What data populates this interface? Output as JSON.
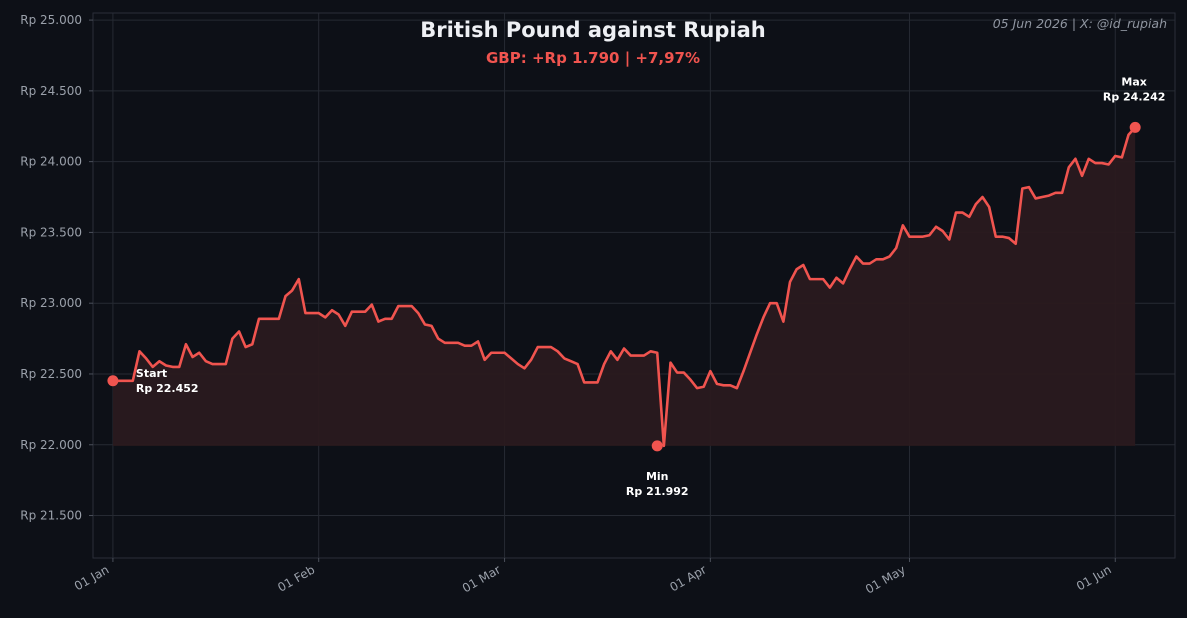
{
  "header": {
    "title": "British Pound against Rupiah",
    "subtitle": "GBP: +Rp 1.790 | +7,97%",
    "credit": "05 Jun 2026 | X: @id_rupiah"
  },
  "colors": {
    "background": "#0d1017",
    "plot_border": "#2a2e38",
    "grid": "#262a33",
    "line": "#f0544f",
    "fill": "#2a1a1f",
    "subtitle": "#f0544f",
    "tick_text": "#9aa0aa"
  },
  "annotations": {
    "start": {
      "label": "Start",
      "value": "Rp 22.452"
    },
    "min": {
      "label": "Min",
      "value": "Rp 21.992"
    },
    "max": {
      "label": "Max",
      "value": "Rp 24.242"
    }
  },
  "chart_data": {
    "type": "area",
    "title": "British Pound against Rupiah",
    "subtitle": "GBP: +Rp 1.790 | +7,97%",
    "xlabel": "",
    "ylabel": "",
    "grid": true,
    "legend": "none",
    "ylim": [
      21200,
      25050
    ],
    "xlim": [
      "2025-12-29",
      "2026-06-10"
    ],
    "y_ticks": [
      21500,
      22000,
      22500,
      23000,
      23500,
      24000,
      24500,
      25000
    ],
    "y_tick_labels": [
      "Rp 21.500",
      "Rp 22.000",
      "Rp 22.500",
      "Rp 23.000",
      "Rp 23.500",
      "Rp 24.000",
      "Rp 24.500",
      "Rp 25.000"
    ],
    "x_ticks": [
      "2026-01-01",
      "2026-02-01",
      "2026-03-01",
      "2026-04-01",
      "2026-05-01",
      "2026-06-01"
    ],
    "x_tick_labels": [
      "01 Jan",
      "01 Feb",
      "01 Mar",
      "01 Apr",
      "01 May",
      "01 Jun"
    ],
    "fill_baseline": 21992,
    "series": [
      {
        "x": [
          "2026-01-01",
          "2026-01-02",
          "2026-01-03",
          "2026-01-04",
          "2026-01-05",
          "2026-01-06",
          "2026-01-07",
          "2026-01-08",
          "2026-01-09",
          "2026-01-10",
          "2026-01-11",
          "2026-01-12",
          "2026-01-13",
          "2026-01-14",
          "2026-01-15",
          "2026-01-16",
          "2026-01-17",
          "2026-01-18",
          "2026-01-19",
          "2026-01-20",
          "2026-01-21",
          "2026-01-22",
          "2026-01-23",
          "2026-01-24",
          "2026-01-25",
          "2026-01-26",
          "2026-01-27",
          "2026-01-28",
          "2026-01-29",
          "2026-01-30",
          "2026-01-31",
          "2026-02-01",
          "2026-02-02",
          "2026-02-03",
          "2026-02-04",
          "2026-02-05",
          "2026-02-06",
          "2026-02-07",
          "2026-02-08",
          "2026-02-09",
          "2026-02-10",
          "2026-02-11",
          "2026-02-12",
          "2026-02-13",
          "2026-02-14",
          "2026-02-15",
          "2026-02-16",
          "2026-02-17",
          "2026-02-18",
          "2026-02-19",
          "2026-02-20",
          "2026-02-21",
          "2026-02-22",
          "2026-02-23",
          "2026-02-24",
          "2026-02-25",
          "2026-02-26",
          "2026-02-27",
          "2026-02-28",
          "2026-03-01",
          "2026-03-02",
          "2026-03-03",
          "2026-03-04",
          "2026-03-05",
          "2026-03-06",
          "2026-03-07",
          "2026-03-08",
          "2026-03-09",
          "2026-03-10",
          "2026-03-11",
          "2026-03-12",
          "2026-03-13",
          "2026-03-14",
          "2026-03-15",
          "2026-03-16",
          "2026-03-17",
          "2026-03-18",
          "2026-03-19",
          "2026-03-20",
          "2026-03-21",
          "2026-03-22",
          "2026-03-23",
          "2026-03-24",
          "2026-03-25",
          "2026-03-26",
          "2026-03-27",
          "2026-03-28",
          "2026-03-29",
          "2026-03-30",
          "2026-03-31",
          "2026-04-01",
          "2026-04-02",
          "2026-04-03",
          "2026-04-04",
          "2026-04-05",
          "2026-04-06",
          "2026-04-07",
          "2026-04-08",
          "2026-04-09",
          "2026-04-10",
          "2026-04-11",
          "2026-04-12",
          "2026-04-13",
          "2026-04-14",
          "2026-04-15",
          "2026-04-16",
          "2026-04-17",
          "2026-04-18",
          "2026-04-19",
          "2026-04-20",
          "2026-04-21",
          "2026-04-22",
          "2026-04-23",
          "2026-04-24",
          "2026-04-25",
          "2026-04-26",
          "2026-04-27",
          "2026-04-28",
          "2026-04-29",
          "2026-04-30",
          "2026-05-01",
          "2026-05-02",
          "2026-05-03",
          "2026-05-04",
          "2026-05-05",
          "2026-05-06",
          "2026-05-07",
          "2026-05-08",
          "2026-05-09",
          "2026-05-10",
          "2026-05-11",
          "2026-05-12",
          "2026-05-13",
          "2026-05-14",
          "2026-05-15",
          "2026-05-16",
          "2026-05-17",
          "2026-05-18",
          "2026-05-19",
          "2026-05-20",
          "2026-05-21",
          "2026-05-22",
          "2026-05-23",
          "2026-05-24",
          "2026-05-25",
          "2026-05-26",
          "2026-05-27",
          "2026-05-28",
          "2026-05-29",
          "2026-05-30",
          "2026-05-31",
          "2026-06-01",
          "2026-06-02",
          "2026-06-03",
          "2026-06-04"
        ],
        "y": [
          22452,
          22452,
          22452,
          22452,
          22660,
          22610,
          22550,
          22590,
          22560,
          22550,
          22550,
          22710,
          22620,
          22650,
          22590,
          22570,
          22570,
          22570,
          22750,
          22800,
          22690,
          22710,
          22890,
          22890,
          22890,
          22890,
          23050,
          23090,
          23170,
          22930,
          22930,
          22930,
          22900,
          22950,
          22920,
          22840,
          22940,
          22940,
          22940,
          22990,
          22870,
          22890,
          22890,
          22980,
          22980,
          22980,
          22930,
          22850,
          22840,
          22750,
          22720,
          22720,
          22720,
          22700,
          22700,
          22730,
          22600,
          22650,
          22650,
          22650,
          22610,
          22570,
          22540,
          22600,
          22690,
          22690,
          22690,
          22660,
          22610,
          22590,
          22570,
          22440,
          22440,
          22440,
          22570,
          22660,
          22600,
          22680,
          22630,
          22630,
          22630,
          22660,
          22650,
          21992,
          22580,
          22510,
          22510,
          22460,
          22400,
          22410,
          22520,
          22430,
          22420,
          22420,
          22400,
          22520,
          22650,
          22780,
          22900,
          23000,
          23000,
          22870,
          23150,
          23240,
          23270,
          23170,
          23170,
          23170,
          23110,
          23180,
          23140,
          23240,
          23330,
          23280,
          23280,
          23310,
          23310,
          23330,
          23390,
          23550,
          23470,
          23470,
          23470,
          23480,
          23540,
          23510,
          23450,
          23640,
          23640,
          23610,
          23700,
          23750,
          23680,
          23470,
          23470,
          23460,
          23420,
          23810,
          23820,
          23740,
          23750,
          23760,
          23780,
          23780,
          23960,
          24020,
          23900,
          24020,
          23990,
          23990,
          23980,
          24040,
          24030,
          24190,
          24242
        ]
      }
    ],
    "annotations": [
      {
        "x": "2026-01-01",
        "y": 22452,
        "label": "Start",
        "value": "Rp 22.452"
      },
      {
        "x": "2026-03-24",
        "y": 21992,
        "label": "Min",
        "value": "Rp 21.992"
      },
      {
        "x": "2026-06-04",
        "y": 24242,
        "label": "Max",
        "value": "Rp 24.242"
      }
    ]
  }
}
